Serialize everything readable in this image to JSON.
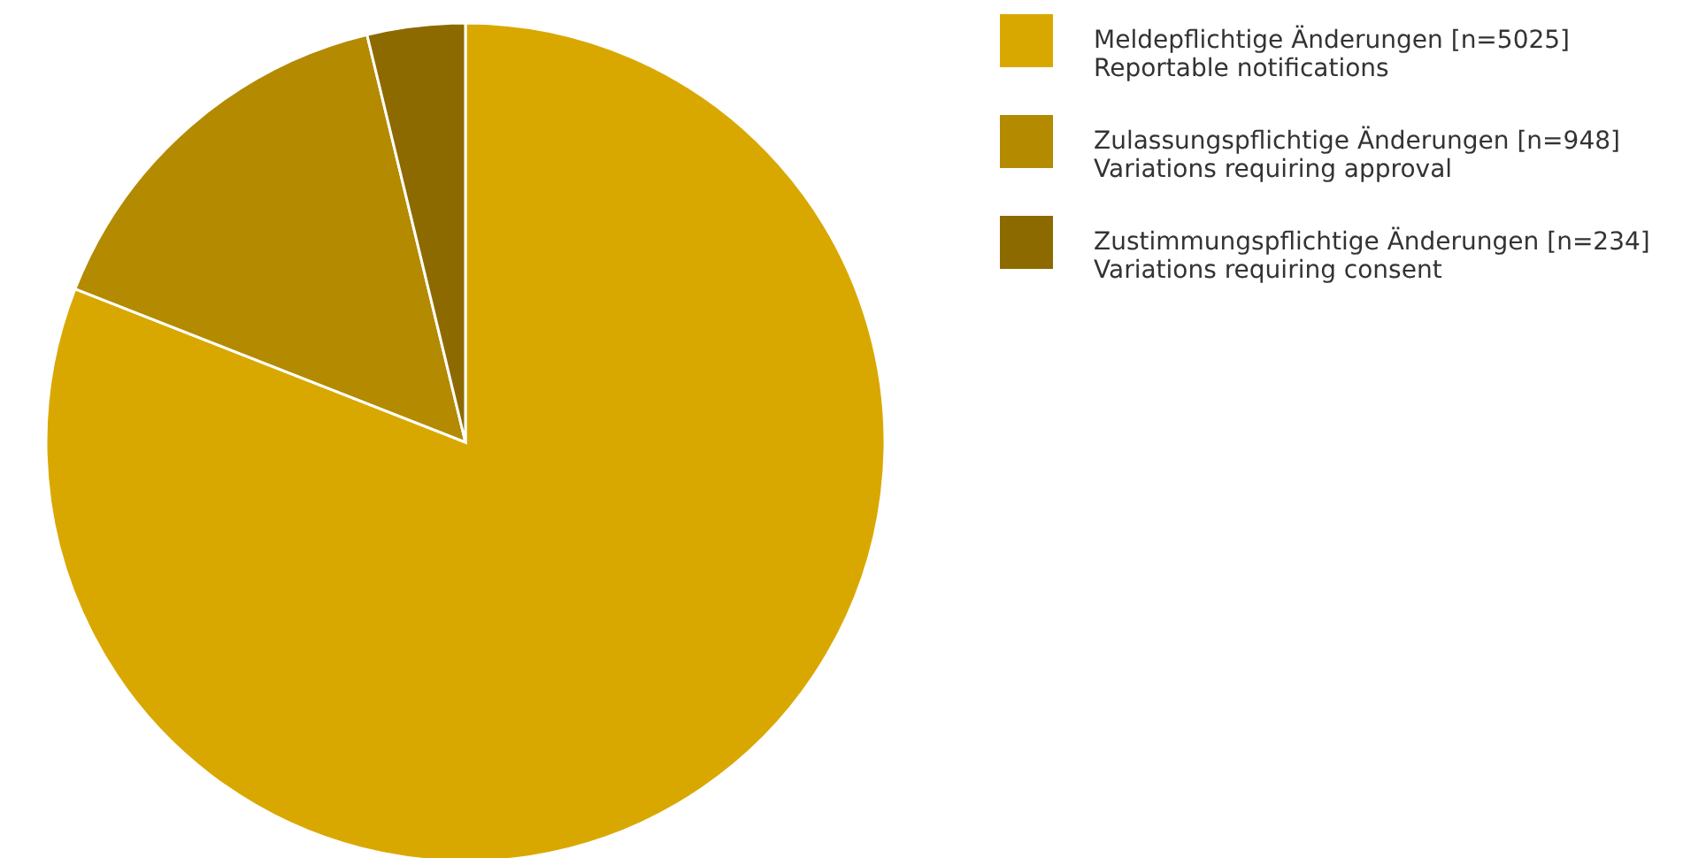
{
  "chart_data": {
    "type": "pie",
    "categories": [
      "Meldepflichtige Änderungen [n=5025]\nReportable notifications",
      "Zulassungspflichtige Änderungen [n=948]\nVariations requiring approval",
      "Zustimmungspflichtige Änderungen [n=234]\nVariations requiring consent"
    ],
    "values": [
      5025,
      948,
      234
    ],
    "colors": [
      "#d9a800",
      "#b38a00",
      "#8c6a00"
    ],
    "legend": "top right"
  }
}
